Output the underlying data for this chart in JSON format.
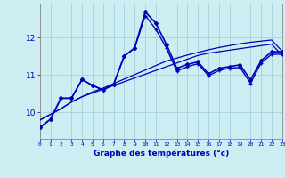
{
  "xlabel": "Graphe des températures (°c)",
  "bg_color": "#cceef2",
  "grid_color": "#aad4dc",
  "line_color": "#0000bb",
  "x_ticks": [
    0,
    1,
    2,
    3,
    4,
    5,
    6,
    7,
    8,
    9,
    10,
    11,
    12,
    13,
    14,
    15,
    16,
    17,
    18,
    19,
    20,
    21,
    22,
    23
  ],
  "y_ticks": [
    10,
    11,
    12
  ],
  "ylim": [
    9.3,
    12.9
  ],
  "xlim": [
    0,
    23
  ],
  "line1": [
    9.8,
    9.95,
    10.1,
    10.28,
    10.42,
    10.52,
    10.62,
    10.72,
    10.82,
    10.92,
    11.02,
    11.12,
    11.22,
    11.32,
    11.42,
    11.52,
    11.58,
    11.62,
    11.66,
    11.7,
    11.74,
    11.78,
    11.82,
    11.52
  ],
  "line2": [
    9.8,
    9.95,
    10.1,
    10.28,
    10.42,
    10.55,
    10.65,
    10.77,
    10.89,
    11.01,
    11.13,
    11.25,
    11.37,
    11.45,
    11.53,
    11.6,
    11.67,
    11.73,
    11.78,
    11.83,
    11.87,
    11.9,
    11.93,
    11.63
  ],
  "line3": [
    9.6,
    9.82,
    10.38,
    10.38,
    10.88,
    10.72,
    10.6,
    10.75,
    11.5,
    11.72,
    12.58,
    12.22,
    11.72,
    11.1,
    11.22,
    11.3,
    10.98,
    11.12,
    11.18,
    11.2,
    10.78,
    11.32,
    11.55,
    11.55
  ],
  "line4": [
    9.6,
    9.82,
    10.38,
    10.38,
    10.88,
    10.72,
    10.6,
    10.75,
    11.5,
    11.72,
    12.68,
    12.38,
    11.82,
    11.18,
    11.28,
    11.35,
    11.03,
    11.18,
    11.22,
    11.27,
    10.87,
    11.38,
    11.62,
    11.62
  ]
}
